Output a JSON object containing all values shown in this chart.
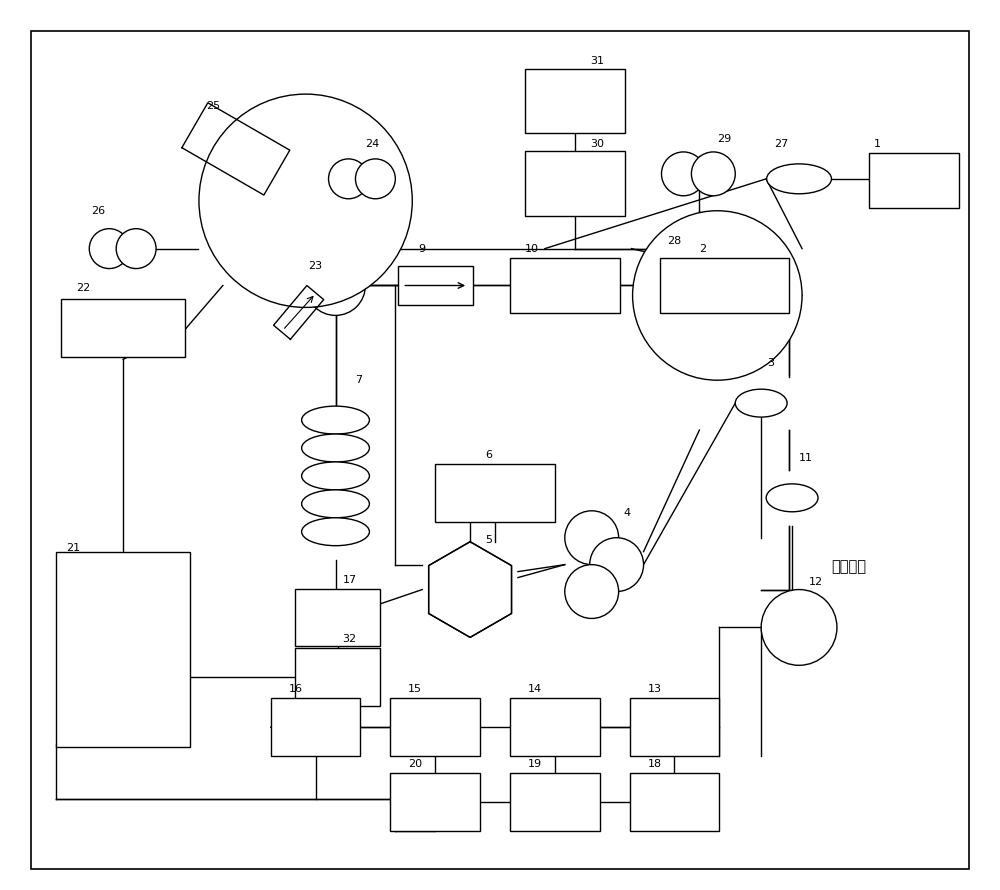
{
  "bg": "#ffffff",
  "lc": "#000000",
  "lw": 1.0,
  "fs": 8.0,
  "chinese_label": "激光输出",
  "figw": 10.0,
  "figh": 8.9
}
